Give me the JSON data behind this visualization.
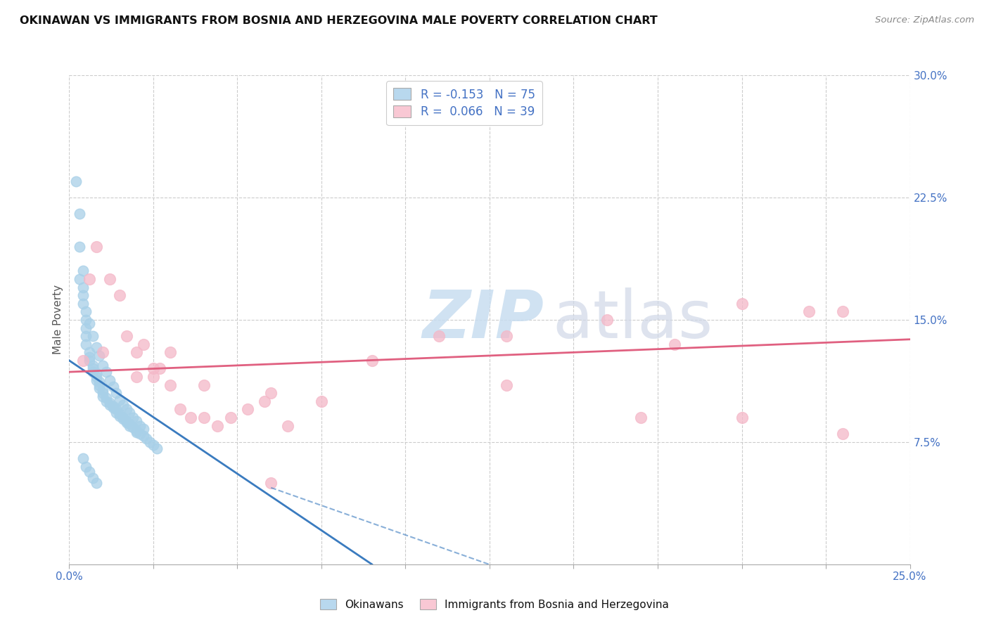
{
  "title": "OKINAWAN VS IMMIGRANTS FROM BOSNIA AND HERZEGOVINA MALE POVERTY CORRELATION CHART",
  "source": "Source: ZipAtlas.com",
  "ylabel": "Male Poverty",
  "ylabel_right_ticks": [
    "30.0%",
    "22.5%",
    "15.0%",
    "7.5%"
  ],
  "ylabel_right_vals": [
    0.3,
    0.225,
    0.15,
    0.075
  ],
  "xlim": [
    0.0,
    0.25
  ],
  "ylim": [
    0.0,
    0.3
  ],
  "okinawan_R": -0.153,
  "okinawan_N": 75,
  "bosnian_R": 0.066,
  "bosnian_N": 39,
  "okinawan_color": "#a8d0e8",
  "bosnian_color": "#f4b8c8",
  "okinawan_line_color": "#3a7bbf",
  "bosnian_line_color": "#e06080",
  "legend_box_color_ok": "#b8d8ee",
  "legend_box_color_bh": "#f9c8d4",
  "watermark_zip": "ZIP",
  "watermark_atlas": "atlas",
  "grid_color": "#cccccc",
  "background_color": "#ffffff",
  "ok_x": [
    0.002,
    0.003,
    0.003,
    0.004,
    0.004,
    0.004,
    0.005,
    0.005,
    0.005,
    0.005,
    0.006,
    0.006,
    0.006,
    0.007,
    0.007,
    0.007,
    0.008,
    0.008,
    0.008,
    0.009,
    0.009,
    0.009,
    0.01,
    0.01,
    0.01,
    0.011,
    0.011,
    0.012,
    0.012,
    0.013,
    0.013,
    0.014,
    0.014,
    0.015,
    0.015,
    0.016,
    0.016,
    0.017,
    0.017,
    0.018,
    0.018,
    0.019,
    0.02,
    0.02,
    0.021,
    0.022,
    0.023,
    0.024,
    0.025,
    0.026,
    0.003,
    0.004,
    0.005,
    0.006,
    0.007,
    0.008,
    0.009,
    0.01,
    0.011,
    0.012,
    0.013,
    0.014,
    0.015,
    0.016,
    0.017,
    0.018,
    0.019,
    0.02,
    0.021,
    0.022,
    0.004,
    0.005,
    0.006,
    0.007,
    0.008
  ],
  "ok_y": [
    0.235,
    0.215,
    0.195,
    0.18,
    0.17,
    0.16,
    0.15,
    0.145,
    0.14,
    0.135,
    0.13,
    0.127,
    0.125,
    0.122,
    0.12,
    0.118,
    0.117,
    0.115,
    0.113,
    0.112,
    0.11,
    0.108,
    0.107,
    0.105,
    0.103,
    0.102,
    0.1,
    0.099,
    0.098,
    0.097,
    0.096,
    0.095,
    0.093,
    0.092,
    0.091,
    0.09,
    0.089,
    0.088,
    0.087,
    0.086,
    0.085,
    0.084,
    0.082,
    0.081,
    0.08,
    0.079,
    0.077,
    0.075,
    0.073,
    0.071,
    0.175,
    0.165,
    0.155,
    0.148,
    0.14,
    0.133,
    0.128,
    0.122,
    0.118,
    0.113,
    0.109,
    0.105,
    0.101,
    0.098,
    0.095,
    0.093,
    0.09,
    0.088,
    0.085,
    0.083,
    0.065,
    0.06,
    0.057,
    0.053,
    0.05
  ],
  "bh_x": [
    0.004,
    0.006,
    0.008,
    0.01,
    0.012,
    0.015,
    0.017,
    0.02,
    0.022,
    0.025,
    0.027,
    0.03,
    0.033,
    0.036,
    0.04,
    0.044,
    0.048,
    0.053,
    0.058,
    0.065,
    0.02,
    0.025,
    0.03,
    0.04,
    0.06,
    0.075,
    0.09,
    0.11,
    0.13,
    0.16,
    0.18,
    0.2,
    0.22,
    0.23,
    0.17,
    0.2,
    0.23,
    0.13,
    0.06
  ],
  "bh_y": [
    0.125,
    0.175,
    0.195,
    0.13,
    0.175,
    0.165,
    0.14,
    0.13,
    0.135,
    0.115,
    0.12,
    0.13,
    0.095,
    0.09,
    0.11,
    0.085,
    0.09,
    0.095,
    0.1,
    0.085,
    0.115,
    0.12,
    0.11,
    0.09,
    0.105,
    0.1,
    0.125,
    0.14,
    0.11,
    0.15,
    0.135,
    0.16,
    0.155,
    0.08,
    0.09,
    0.09,
    0.155,
    0.14,
    0.05
  ],
  "ok_line_x": [
    0.0,
    0.09
  ],
  "ok_line_y_start": 0.125,
  "ok_line_y_end": 0.0,
  "bh_line_x": [
    0.0,
    0.25
  ],
  "bh_line_y_start": 0.118,
  "bh_line_y_end": 0.138
}
